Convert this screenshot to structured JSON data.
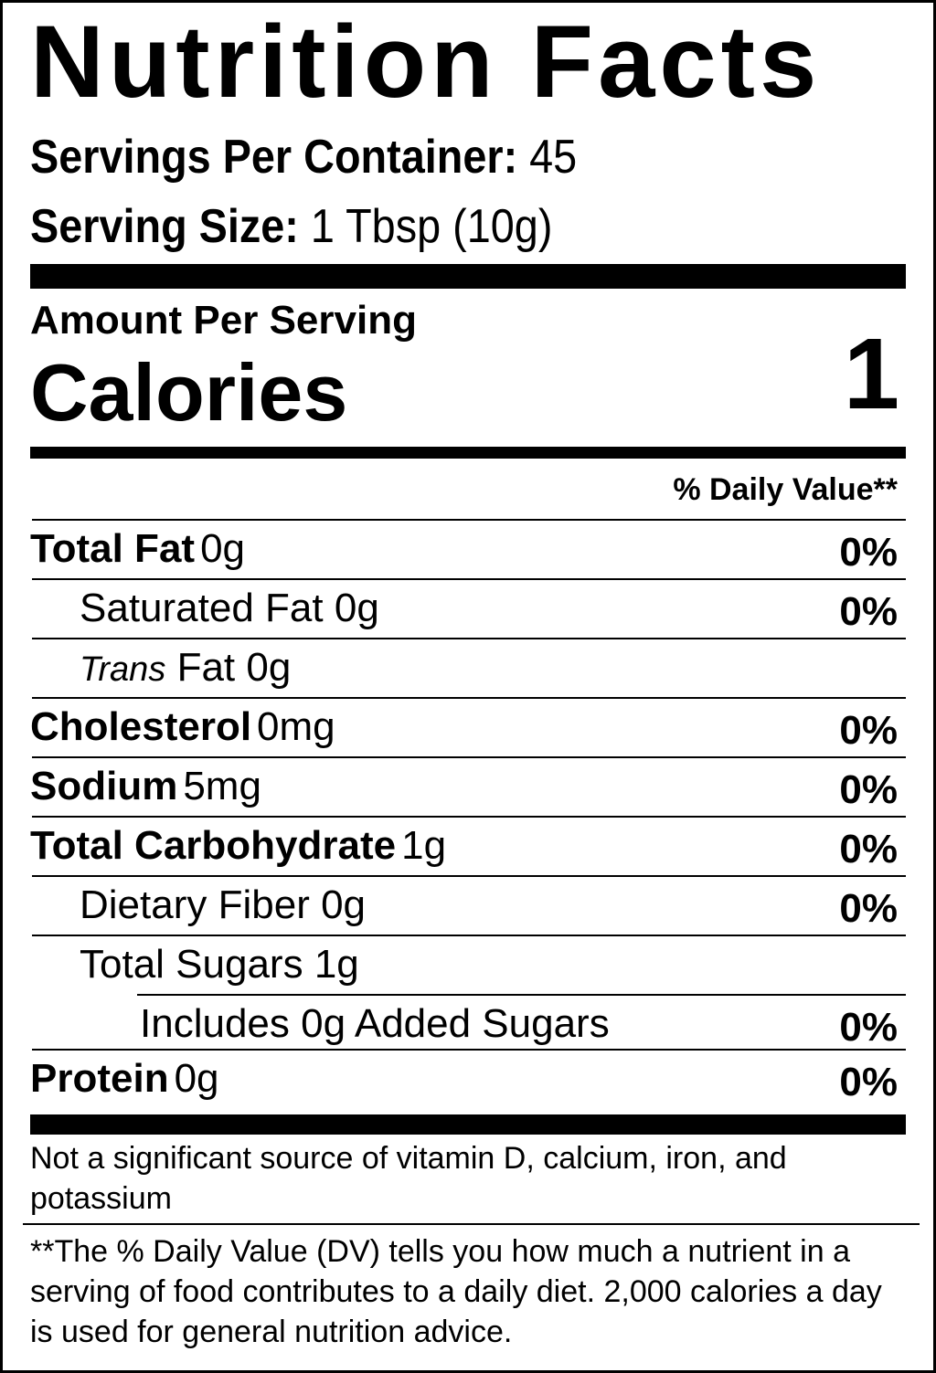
{
  "title": "Nutrition Facts",
  "servings_per_container": {
    "label": "Servings Per Container:",
    "value": "45"
  },
  "serving_size": {
    "label": "Serving Size:",
    "value": "1 Tbsp (10g)"
  },
  "amount_per_serving": "Amount Per Serving",
  "calories": {
    "label": "Calories",
    "value": "1"
  },
  "daily_value_header": "% Daily Value**",
  "nutrients": [
    {
      "name": "Total Fat",
      "amount": "0g",
      "dv": "0%",
      "bold": true,
      "indent": 0
    },
    {
      "name": "Saturated Fat",
      "amount": "0g",
      "dv": "0%",
      "bold": false,
      "indent": 1
    },
    {
      "name": "Trans",
      "name_suffix": "Fat",
      "amount": "0g",
      "dv": "",
      "bold": false,
      "indent": 1,
      "italic_prefix": true
    },
    {
      "name": "Cholesterol",
      "amount": "0mg",
      "dv": "0%",
      "bold": true,
      "indent": 0
    },
    {
      "name": "Sodium",
      "amount": "5mg",
      "dv": "0%",
      "bold": true,
      "indent": 0
    },
    {
      "name": "Total Carbohydrate",
      "amount": "1g",
      "dv": "0%",
      "bold": true,
      "indent": 0
    },
    {
      "name": "Dietary Fiber",
      "amount": "0g",
      "dv": "0%",
      "bold": false,
      "indent": 1
    },
    {
      "name": "Total Sugars",
      "amount": "1g",
      "dv": "",
      "bold": false,
      "indent": 1
    },
    {
      "name": "Includes 0g Added Sugars",
      "amount": "",
      "dv": "0%",
      "bold": false,
      "indent": 2
    },
    {
      "name": "Protein",
      "amount": "0g",
      "dv": "0%",
      "bold": true,
      "indent": 0
    }
  ],
  "footnote_vitamins": "Not a significant source of vitamin D, calcium, iron, and potassium",
  "footnote_dv": "**The % Daily Value (DV) tells you how much a nutrient in a serving of food contributes to a daily diet. 2,000 calories a day is used for general nutrition advice."
}
